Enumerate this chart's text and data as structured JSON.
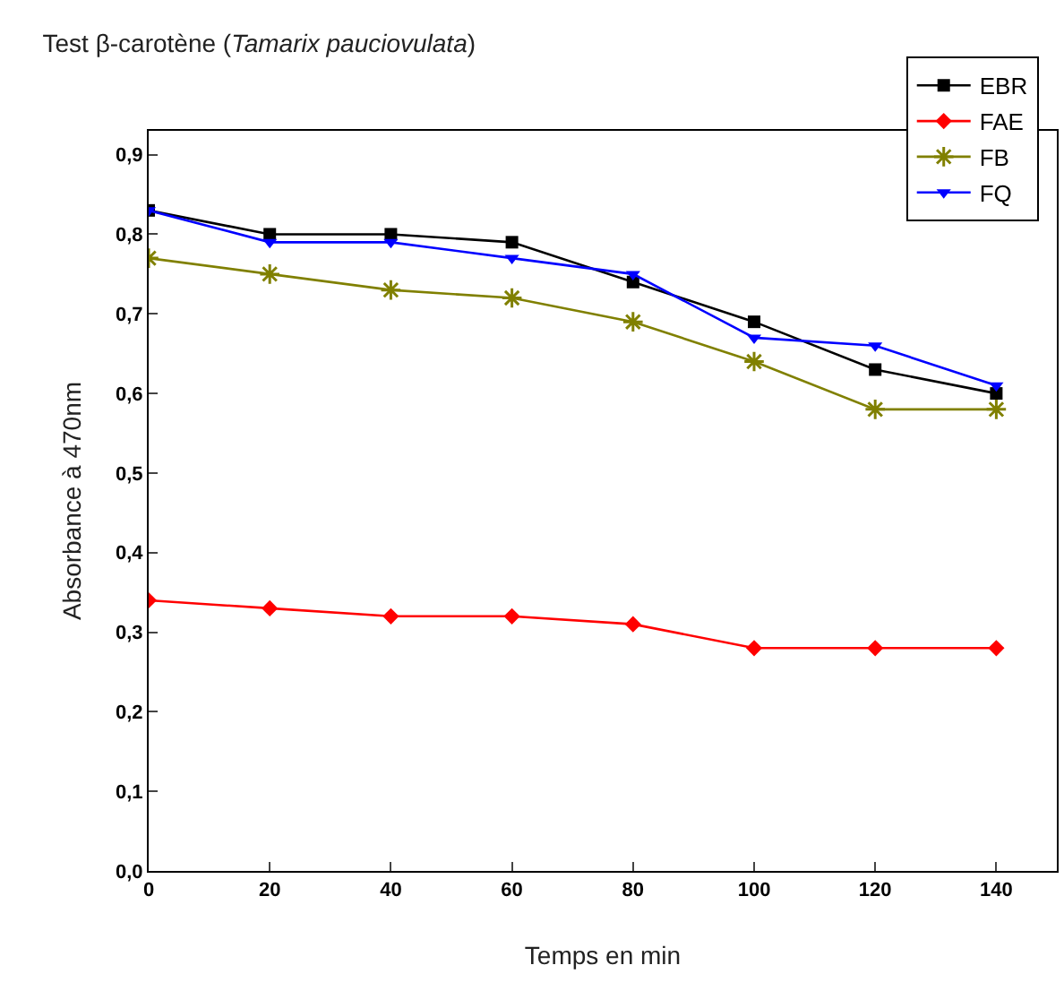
{
  "chart_data": {
    "type": "line",
    "title": "Test β-carotène (Tamarix pauciovulata)",
    "xlabel": "Temps en min",
    "ylabel": "Absorbance à 470nm",
    "x": [
      0,
      20,
      40,
      60,
      80,
      100,
      120,
      140
    ],
    "series": [
      {
        "name": "EBR",
        "color": "#000000",
        "marker": "square",
        "values": [
          0.83,
          0.8,
          0.8,
          0.79,
          0.74,
          0.69,
          0.63,
          0.6
        ]
      },
      {
        "name": "FAE",
        "color": "#ff0000",
        "marker": "diamond",
        "values": [
          0.34,
          0.33,
          0.32,
          0.32,
          0.31,
          0.28,
          0.28,
          0.28
        ]
      },
      {
        "name": "FB",
        "color": "#808000",
        "marker": "cross",
        "values": [
          0.77,
          0.75,
          0.73,
          0.72,
          0.69,
          0.64,
          0.58,
          0.58
        ]
      },
      {
        "name": "FQ",
        "color": "#0000ff",
        "marker": "triangle",
        "values": [
          0.83,
          0.79,
          0.79,
          0.77,
          0.75,
          0.67,
          0.66,
          0.61
        ]
      }
    ],
    "xlim": [
      0,
      150
    ],
    "xticks": [
      0,
      20,
      40,
      60,
      80,
      100,
      120,
      140
    ],
    "ylim": [
      0,
      0.93
    ],
    "yticks": [
      {
        "value": 0,
        "label": "0,0"
      },
      {
        "value": 0.1,
        "label": "0,1"
      },
      {
        "value": 0.2,
        "label": "0,2"
      },
      {
        "value": 0.3,
        "label": "0,3"
      },
      {
        "value": 0.4,
        "label": "0,4"
      },
      {
        "value": 0.5,
        "label": "0,5"
      },
      {
        "value": 0.6,
        "label": "0,6"
      },
      {
        "value": 0.7,
        "label": "0,7"
      },
      {
        "value": 0.8,
        "label": "0,8"
      },
      {
        "value": 0.9,
        "label": "0,9"
      }
    ],
    "grid": false,
    "legend": "top right",
    "line_style": "solid"
  }
}
